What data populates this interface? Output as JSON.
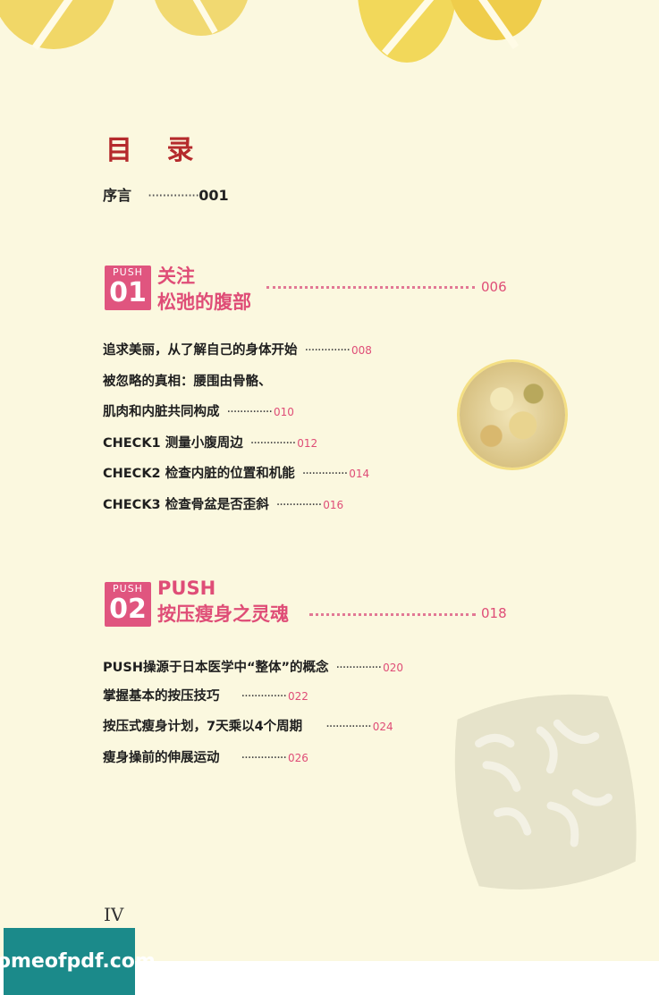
{
  "toc": {
    "title": "目 录",
    "preface": {
      "label": "序言",
      "dots": "··············",
      "page": "001"
    },
    "sections": [
      {
        "badge_label": "PUSH",
        "badge_number": "01",
        "title_line1": "关注",
        "title_line2": "松弛的腹部",
        "page": "006",
        "entries": [
          {
            "text": "追求美丽，从了解自己的身体开始",
            "dots": "··············",
            "page": "008"
          },
          {
            "text": "被忽略的真相：腰围由骨骼、",
            "dots": "",
            "page": ""
          },
          {
            "text": "肌肉和内脏共同构成",
            "dots": "··············",
            "page": "010"
          },
          {
            "text": "CHECK1 测量小腹周边",
            "dots": "··············",
            "page": "012"
          },
          {
            "text": "CHECK2 检查内脏的位置和机能",
            "dots": "··············",
            "page": "014"
          },
          {
            "text": "CHECK3 检查骨盆是否歪斜",
            "dots": "··············",
            "page": "016"
          }
        ]
      },
      {
        "badge_label": "PUSH",
        "badge_number": "02",
        "title_line1": "PUSH",
        "title_line2": "按压瘦身之灵魂",
        "page": "018",
        "entries": [
          {
            "text": "PUSH操源于日本医学中“整体”的概念",
            "dots": "··············",
            "page": "020"
          },
          {
            "text": "掌握基本的按压技巧",
            "dots": "··············",
            "page": "022"
          },
          {
            "text": "按压式瘦身计划，7天乘以4个周期",
            "dots": "··············",
            "page": "024"
          },
          {
            "text": "瘦身操前的伸展运动",
            "dots": "··············",
            "page": "026"
          }
        ]
      }
    ]
  },
  "page_number": "IV",
  "watermark": "homeofpdf.com"
}
